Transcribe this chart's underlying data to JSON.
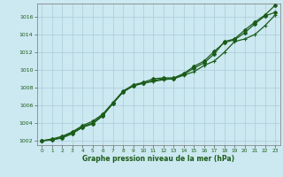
{
  "xlabel": "Graphe pression niveau de la mer (hPa)",
  "ylim": [
    1001.5,
    1017.5
  ],
  "xlim": [
    -0.5,
    23.5
  ],
  "yticks": [
    1002,
    1004,
    1006,
    1008,
    1010,
    1012,
    1014,
    1016
  ],
  "xticks": [
    0,
    1,
    2,
    3,
    4,
    5,
    6,
    7,
    8,
    9,
    10,
    11,
    12,
    13,
    14,
    15,
    16,
    17,
    18,
    19,
    20,
    21,
    22,
    23
  ],
  "background_color": "#cce8f0",
  "grid_color": "#aaccd8",
  "line_color": "#1a5c1a",
  "line1": [
    1002.0,
    1002.1,
    1002.3,
    1002.8,
    1003.5,
    1003.9,
    1004.8,
    1006.2,
    1007.5,
    1008.2,
    1008.5,
    1008.8,
    1009.0,
    1009.0,
    1009.5,
    1010.2,
    1010.8,
    1011.8,
    1013.2,
    1013.5,
    1014.5,
    1015.4,
    1016.2,
    1017.3
  ],
  "line2": [
    1002.0,
    1002.2,
    1002.5,
    1003.0,
    1003.7,
    1004.2,
    1005.0,
    1006.3,
    1007.6,
    1008.3,
    1008.6,
    1009.0,
    1009.1,
    1009.1,
    1009.6,
    1010.4,
    1011.0,
    1012.1,
    1013.1,
    1013.4,
    1014.2,
    1015.2,
    1016.1,
    1016.5
  ],
  "line3": [
    1002.0,
    1002.1,
    1002.4,
    1002.9,
    1003.6,
    1004.0,
    1004.9,
    1006.2,
    1007.5,
    1008.2,
    1008.5,
    1008.7,
    1008.9,
    1009.0,
    1009.4,
    1009.8,
    1010.5,
    1011.0,
    1012.0,
    1013.2,
    1013.5,
    1014.0,
    1015.0,
    1016.2
  ]
}
